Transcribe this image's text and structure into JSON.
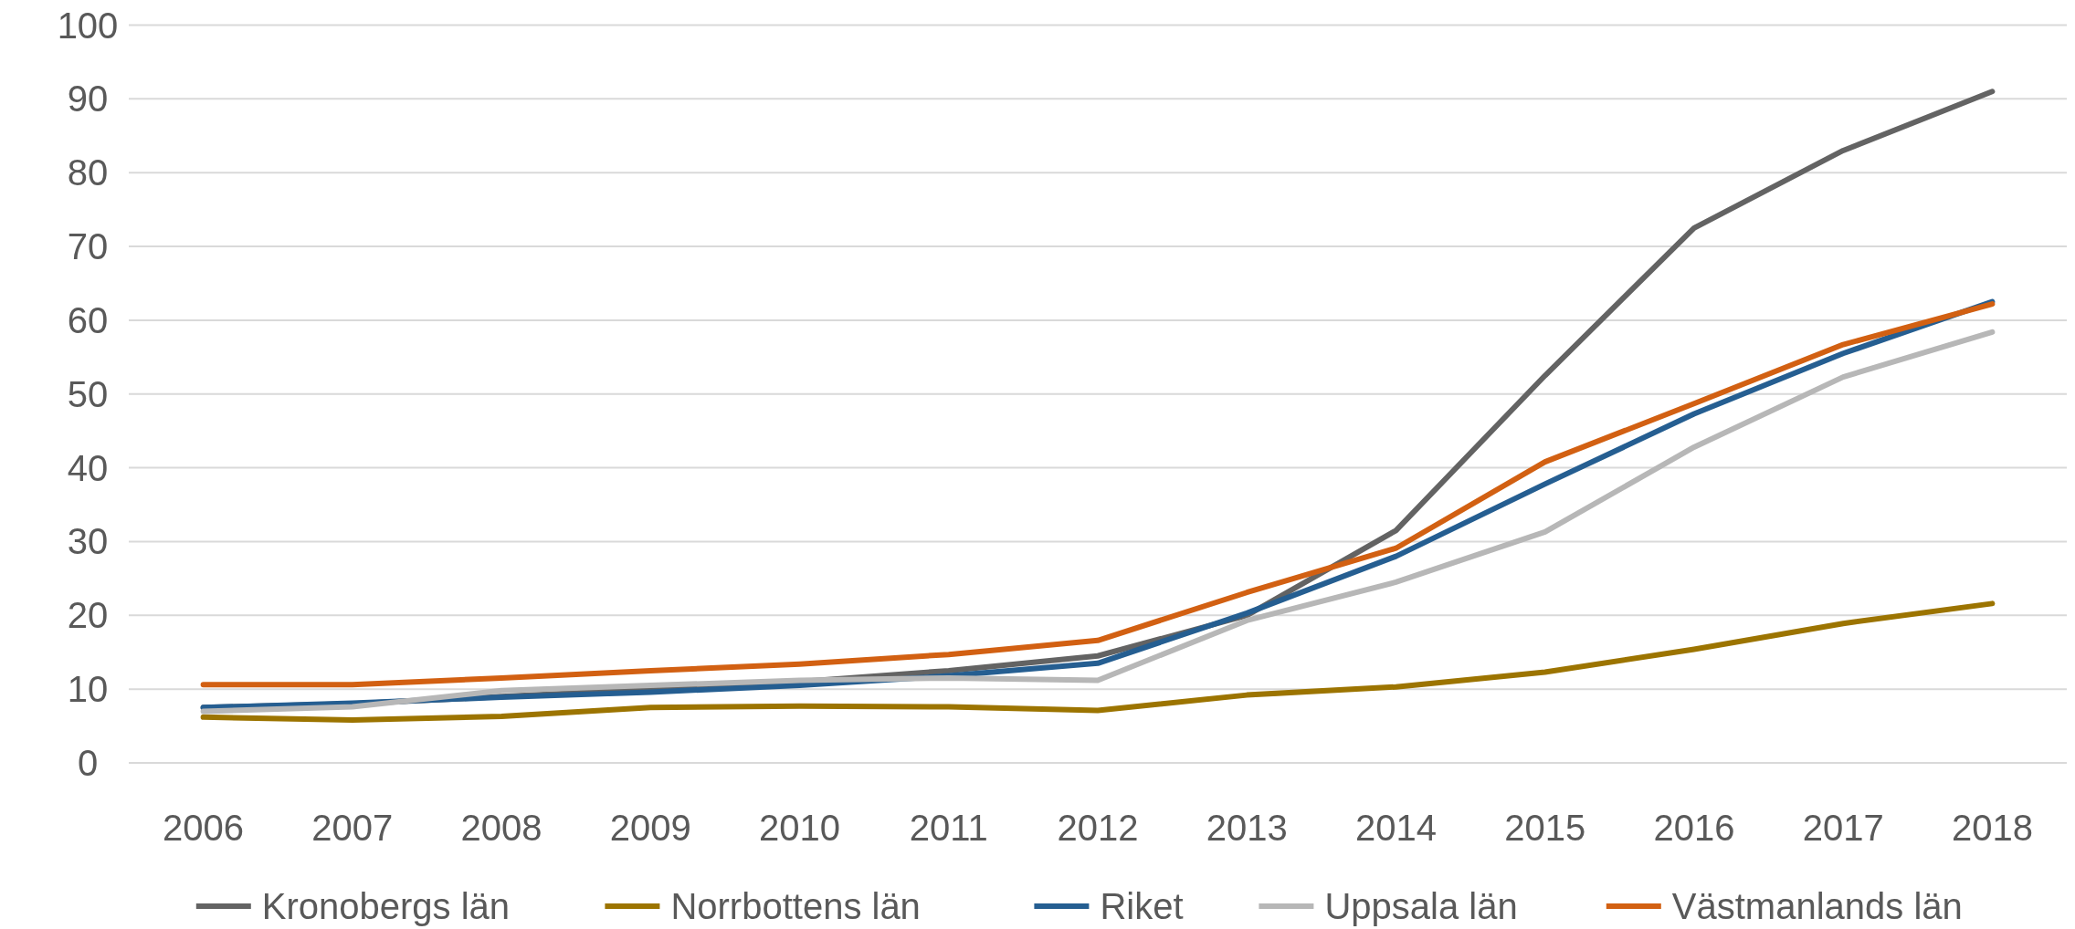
{
  "chart_data": {
    "type": "line",
    "categories": [
      "2006",
      "2007",
      "2008",
      "2009",
      "2010",
      "2011",
      "2012",
      "2013",
      "2014",
      "2015",
      "2016",
      "2017",
      "2018"
    ],
    "series": [
      {
        "name": "Kronobergs län",
        "color": "#636363",
        "values": [
          7.5,
          8,
          9,
          10,
          11,
          12.5,
          14.5,
          20,
          31.5,
          52.5,
          72.5,
          83,
          91
        ]
      },
      {
        "name": "Norrbottens län",
        "color": "#9c7400",
        "values": [
          6.2,
          5.8,
          6.3,
          7.5,
          7.7,
          7.6,
          7.1,
          9.2,
          10.3,
          12.3,
          15.4,
          18.9,
          21.6
        ]
      },
      {
        "name": "Riket",
        "color": "#255e91",
        "values": [
          7.5,
          8.1,
          8.9,
          9.6,
          10.5,
          11.8,
          13.5,
          20.3,
          28,
          37.8,
          47.3,
          55.5,
          62.5
        ]
      },
      {
        "name": "Uppsala län",
        "color": "#b7b7b7",
        "values": [
          7,
          7.6,
          9.8,
          10.5,
          11.2,
          11.5,
          11.2,
          19.3,
          24.5,
          31.3,
          42.8,
          52.3,
          58.4
        ]
      },
      {
        "name": "Västmanlands län",
        "color": "#d26012",
        "values": [
          10.6,
          10.6,
          11.5,
          12.5,
          13.4,
          14.7,
          16.6,
          23.1,
          29.1,
          40.8,
          48.7,
          56.7,
          62.2
        ]
      }
    ],
    "ylim": [
      0,
      100
    ],
    "yticks": [
      0,
      10,
      20,
      30,
      40,
      50,
      60,
      70,
      80,
      90,
      100
    ],
    "grid": "y",
    "legend": "bottom",
    "marker": "none",
    "line_style": "solid"
  }
}
